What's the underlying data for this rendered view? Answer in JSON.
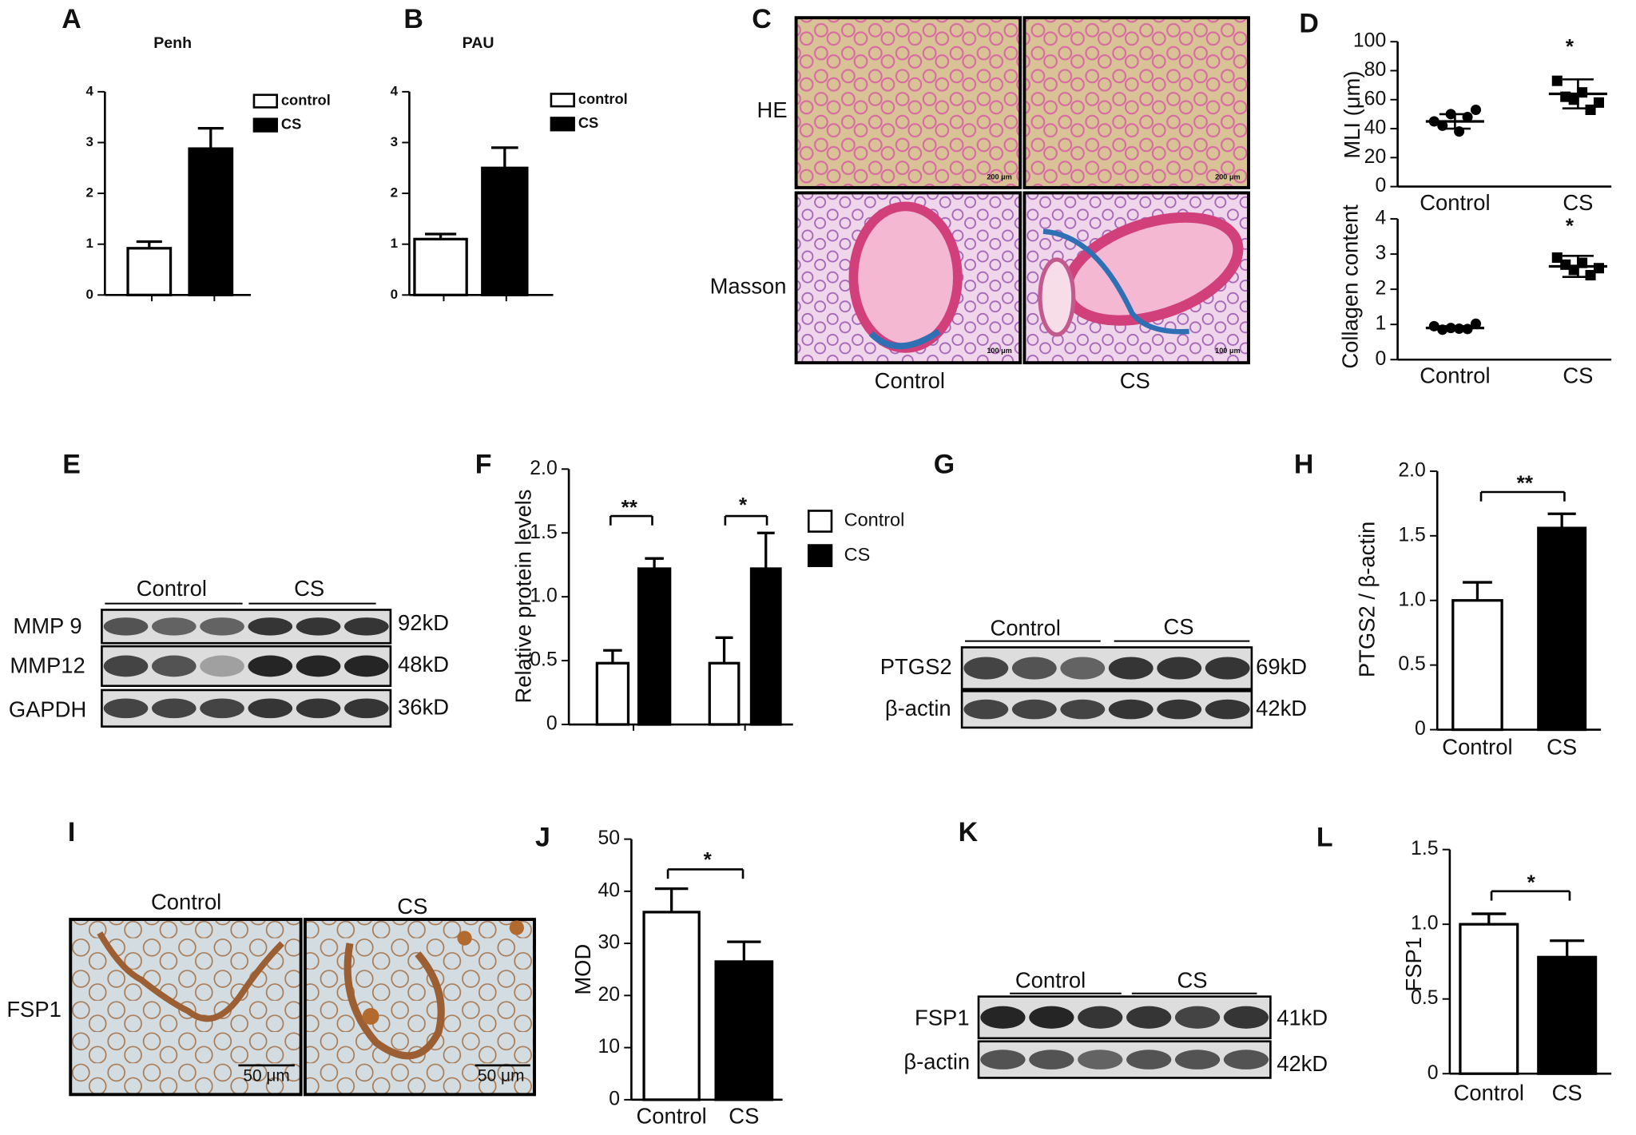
{
  "chart_data": [
    {
      "type": "bar",
      "title": "Penh",
      "categories": [
        null
      ],
      "series": [
        {
          "name": "control",
          "color": "#ffffff",
          "values": [
            0.92
          ],
          "errors": [
            0.13
          ]
        },
        {
          "name": "CS",
          "color": "#000000",
          "values": [
            2.88
          ],
          "errors": [
            0.4
          ]
        }
      ],
      "ylim": [
        0,
        4
      ],
      "yticks": [
        0,
        1,
        2,
        3,
        4
      ]
    },
    {
      "type": "bar",
      "title": "PAU",
      "categories": [
        null
      ],
      "series": [
        {
          "name": "control",
          "color": "#ffffff",
          "values": [
            1.1
          ],
          "errors": [
            0.1
          ]
        },
        {
          "name": "CS",
          "color": "#000000",
          "values": [
            2.5
          ],
          "errors": [
            0.4
          ]
        }
      ],
      "ylim": [
        0,
        4
      ],
      "yticks": [
        0,
        1,
        2,
        3,
        4
      ]
    },
    {
      "type": "dot",
      "ylabel": "MLI (μm)",
      "categories": [
        "Control",
        "CS"
      ],
      "markers": [
        "circle",
        "square"
      ],
      "points": [
        [
          45,
          42,
          50,
          38,
          48,
          53
        ],
        [
          73,
          62,
          60,
          65,
          53,
          58
        ]
      ],
      "means": [
        45,
        64
      ],
      "sd": [
        5,
        10
      ],
      "annotations": [
        "*"
      ],
      "ylim": [
        0,
        100
      ],
      "yticks": [
        0,
        20,
        40,
        60,
        80,
        100
      ]
    },
    {
      "type": "dot",
      "ylabel": "Collagen content",
      "categories": [
        "Control",
        "CS"
      ],
      "markers": [
        "circle",
        "square"
      ],
      "points": [
        [
          0.95,
          0.85,
          0.9,
          0.88,
          0.87,
          1.02
        ],
        [
          2.9,
          2.7,
          2.55,
          2.75,
          2.4,
          2.6
        ]
      ],
      "means": [
        0.9,
        2.65
      ],
      "sd": [
        0.05,
        0.3
      ],
      "annotations": [
        "*"
      ],
      "ylim": [
        0,
        4
      ],
      "yticks": [
        0,
        1,
        2,
        3,
        4
      ]
    },
    {
      "type": "bar",
      "ylabel": "Relative protein levels",
      "categories": [
        null,
        null
      ],
      "series": [
        {
          "name": "Control",
          "color": "#ffffff",
          "values": [
            0.48,
            0.48
          ],
          "errors": [
            0.1,
            0.2
          ]
        },
        {
          "name": "CS",
          "color": "#000000",
          "values": [
            1.22,
            1.22
          ],
          "errors": [
            0.08,
            0.28
          ]
        }
      ],
      "annotations": [
        "**",
        "*"
      ],
      "ylim": [
        0,
        2
      ],
      "yticks": [
        0,
        0.5,
        {
          "value": 1,
          "label": "1.0"
        },
        1.5,
        {
          "value": 2,
          "label": "2.0"
        }
      ]
    },
    {
      "type": "bar",
      "ylabel": "PTGS2 / β-actin",
      "categories": [
        "Control",
        "CS"
      ],
      "values": [
        1.0,
        1.56
      ],
      "errors": [
        0.14,
        0.11
      ],
      "colors": [
        "#ffffff",
        "#000000"
      ],
      "annotations": [
        "**"
      ],
      "ylim": [
        0,
        2
      ],
      "yticks": [
        0,
        0.5,
        {
          "value": 1,
          "label": "1.0"
        },
        1.5,
        {
          "value": 2,
          "label": "2.0"
        }
      ]
    },
    {
      "type": "bar",
      "ylabel": "MOD",
      "categories": [
        "Control",
        "CS"
      ],
      "values": [
        36,
        26.5
      ],
      "errors": [
        4.5,
        3.8
      ],
      "colors": [
        "#ffffff",
        "#000000"
      ],
      "annotations": [
        "*"
      ],
      "ylim": [
        0,
        50
      ],
      "yticks": [
        0,
        10,
        20,
        30,
        40,
        50
      ]
    },
    {
      "type": "bar",
      "ylabel": "FSP1",
      "categories": [
        "Control",
        "CS"
      ],
      "values": [
        1.0,
        0.78
      ],
      "errors": [
        0.07,
        0.11
      ],
      "colors": [
        "#ffffff",
        "#000000"
      ],
      "annotations": [
        "*"
      ],
      "ylim": [
        0,
        1.5
      ],
      "yticks": [
        0,
        0.5,
        {
          "value": 1,
          "label": "1.0"
        },
        1.5
      ]
    }
  ],
  "panel_labels": [
    "A",
    "B",
    "C",
    "D",
    "E",
    "F",
    "G",
    "H",
    "I",
    "J",
    "K",
    "L"
  ],
  "histology_C": {
    "rows": [
      "HE",
      "Masson"
    ],
    "columns": [
      "Control",
      "CS"
    ],
    "scale_bars": [
      "200 μm",
      "200 μm",
      "100 μm",
      "100 μm"
    ]
  },
  "blot_E": {
    "groups": [
      "Control",
      "CS"
    ],
    "bands": [
      "MMP 9",
      "MMP12",
      "GAPDH"
    ],
    "sizes": [
      "92kD",
      "48kD",
      "36kD"
    ]
  },
  "blot_G": {
    "groups": [
      "Control",
      "CS"
    ],
    "bands": [
      "PTGS2",
      "β-actin"
    ],
    "sizes": [
      "69kD",
      "42kD"
    ]
  },
  "ihc_I": {
    "columns": [
      "Control",
      "CS"
    ],
    "stain": "FSP1",
    "scale_bars": [
      "50 μm",
      "50 μm"
    ]
  },
  "blot_K": {
    "groups": [
      "Control",
      "CS"
    ],
    "bands": [
      "FSP1",
      "β-actin"
    ],
    "sizes": [
      "41kD",
      "42kD"
    ]
  }
}
